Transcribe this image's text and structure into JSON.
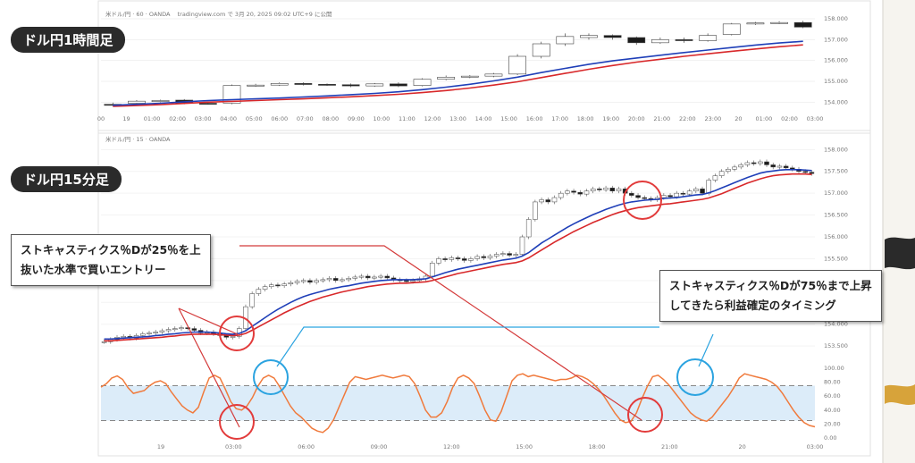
{
  "labels": {
    "hourly": "ドル円1時間足",
    "m15": "ドル円15分足",
    "callout_buy": [
      "ストキャスティクス％Dが25％を上",
      "抜いた水準で買いエントリー"
    ],
    "callout_sell": [
      "ストキャスティクス％Dが75％まで上昇",
      "してきたら利益確定のタイミング"
    ],
    "top_source": "米ドル/円 · 60 · OANDA",
    "top_meta": "tradingview.com で 3月 20, 2025 09:02 UTC+9 に公開",
    "m15_source": "米ドル/円 · 15 · OANDA"
  },
  "colors": {
    "ma_fast": "#1f3fb8",
    "ma_slow": "#d8282a",
    "stoch": "#f07a3c",
    "band_fill": "#dcecf9",
    "circle_red": "#e23b3b",
    "circle_blue": "#2ba3e0",
    "line_red": "#d43a3a",
    "line_blue": "#2ba3e0"
  },
  "chart_data": [
    {
      "type": "candlestick",
      "name": "hourly",
      "ylim": [
        153.5,
        158.3
      ],
      "y_ticks": [
        "158.000",
        "157.000",
        "156.000",
        "155.000",
        "154.000"
      ],
      "x_ticks": [
        "00",
        "19",
        "01:00",
        "02:00",
        "03:00",
        "04:00",
        "05:00",
        "06:00",
        "07:00",
        "08:00",
        "09:00",
        "10:00",
        "11:00",
        "12:00",
        "13:00",
        "14:00",
        "15:00",
        "16:00",
        "17:00",
        "18:00",
        "19:00",
        "20:00",
        "21:00",
        "22:00",
        "23:00",
        "20",
        "01:00",
        "02:00",
        "03:00"
      ],
      "candles": [
        {
          "o": 153.9,
          "c": 153.88,
          "h": 153.98,
          "l": 153.82
        },
        {
          "o": 153.95,
          "c": 154.05,
          "h": 154.1,
          "l": 153.92
        },
        {
          "o": 154.05,
          "c": 154.08,
          "h": 154.12,
          "l": 154.0
        },
        {
          "o": 154.1,
          "c": 153.95,
          "h": 154.15,
          "l": 153.9
        },
        {
          "o": 153.95,
          "c": 153.92,
          "h": 154.0,
          "l": 153.88
        },
        {
          "o": 153.95,
          "c": 154.8,
          "h": 154.85,
          "l": 153.9
        },
        {
          "o": 154.8,
          "c": 154.82,
          "h": 154.88,
          "l": 154.74
        },
        {
          "o": 154.82,
          "c": 154.9,
          "h": 154.95,
          "l": 154.78
        },
        {
          "o": 154.9,
          "c": 154.86,
          "h": 154.95,
          "l": 154.8
        },
        {
          "o": 154.86,
          "c": 154.84,
          "h": 154.9,
          "l": 154.78
        },
        {
          "o": 154.84,
          "c": 154.78,
          "h": 154.9,
          "l": 154.72
        },
        {
          "o": 154.78,
          "c": 154.88,
          "h": 154.92,
          "l": 154.74
        },
        {
          "o": 154.88,
          "c": 154.78,
          "h": 154.95,
          "l": 154.72
        },
        {
          "o": 154.8,
          "c": 155.1,
          "h": 155.15,
          "l": 154.76
        },
        {
          "o": 155.1,
          "c": 155.2,
          "h": 155.28,
          "l": 155.05
        },
        {
          "o": 155.2,
          "c": 155.25,
          "h": 155.3,
          "l": 155.15
        },
        {
          "o": 155.25,
          "c": 155.35,
          "h": 155.4,
          "l": 155.2
        },
        {
          "o": 155.35,
          "c": 156.2,
          "h": 156.3,
          "l": 155.3
        },
        {
          "o": 156.2,
          "c": 156.8,
          "h": 156.9,
          "l": 156.1
        },
        {
          "o": 156.8,
          "c": 157.15,
          "h": 157.3,
          "l": 156.7
        },
        {
          "o": 157.1,
          "c": 157.2,
          "h": 157.3,
          "l": 157.0
        },
        {
          "o": 157.2,
          "c": 157.1,
          "h": 157.25,
          "l": 157.0
        },
        {
          "o": 157.1,
          "c": 156.85,
          "h": 157.15,
          "l": 156.75
        },
        {
          "o": 156.85,
          "c": 157.0,
          "h": 157.1,
          "l": 156.8
        },
        {
          "o": 157.0,
          "c": 156.95,
          "h": 157.1,
          "l": 156.85
        },
        {
          "o": 156.95,
          "c": 157.2,
          "h": 157.3,
          "l": 156.9
        },
        {
          "o": 157.25,
          "c": 157.75,
          "h": 157.8,
          "l": 157.2
        },
        {
          "o": 157.75,
          "c": 157.8,
          "h": 157.85,
          "l": 157.7
        },
        {
          "o": 157.8,
          "c": 157.82,
          "h": 157.88,
          "l": 157.75
        },
        {
          "o": 157.82,
          "c": 157.6,
          "h": 157.9,
          "l": 157.55
        }
      ],
      "ma_fast": [
        153.85,
        153.9,
        153.95,
        154.02,
        154.08,
        154.12,
        154.16,
        154.2,
        154.25,
        154.3,
        154.36,
        154.42,
        154.5,
        154.6,
        154.72,
        154.86,
        155.02,
        155.2,
        155.42,
        155.62,
        155.82,
        155.98,
        156.12,
        156.25,
        156.38,
        156.5,
        156.62,
        156.74,
        156.84,
        156.92
      ],
      "ma_slow": [
        153.8,
        153.84,
        153.88,
        153.94,
        154.0,
        154.04,
        154.08,
        154.12,
        154.16,
        154.21,
        154.26,
        154.32,
        154.38,
        154.46,
        154.56,
        154.68,
        154.82,
        154.98,
        155.18,
        155.38,
        155.58,
        155.76,
        155.92,
        156.06,
        156.2,
        156.32,
        156.44,
        156.55,
        156.66,
        156.75
      ]
    },
    {
      "type": "candlestick",
      "name": "m15",
      "ylim": [
        153.4,
        158.15
      ],
      "y_ticks": [
        "158.000",
        "157.500",
        "157.000",
        "156.500",
        "156.000",
        "155.500",
        "155.000",
        "154.500",
        "154.000",
        "153.500"
      ],
      "x_ticks": [
        "19",
        "03:00",
        "06:00",
        "09:00",
        "12:00",
        "15:00",
        "18:00",
        "21:00",
        "20",
        "03:00"
      ],
      "closes": [
        153.6,
        153.65,
        153.7,
        153.72,
        153.68,
        153.74,
        153.78,
        153.8,
        153.82,
        153.85,
        153.88,
        153.9,
        153.92,
        153.9,
        153.86,
        153.8,
        153.82,
        153.78,
        153.74,
        153.7,
        153.72,
        153.9,
        154.4,
        154.7,
        154.8,
        154.86,
        154.9,
        154.88,
        154.92,
        154.95,
        154.98,
        155.0,
        154.96,
        155.0,
        155.02,
        155.05,
        155.0,
        155.02,
        155.05,
        155.08,
        155.1,
        155.06,
        155.08,
        155.1,
        155.06,
        155.02,
        155.0,
        154.98,
        155.0,
        155.04,
        155.1,
        155.4,
        155.5,
        155.48,
        155.52,
        155.5,
        155.46,
        155.5,
        155.55,
        155.52,
        155.56,
        155.6,
        155.62,
        155.58,
        155.6,
        156.0,
        156.4,
        156.8,
        156.85,
        156.8,
        156.9,
        157.0,
        157.05,
        157.02,
        156.98,
        157.05,
        157.1,
        157.08,
        157.12,
        157.05,
        157.1,
        157.0,
        156.95,
        156.9,
        156.88,
        156.85,
        156.9,
        156.95,
        156.92,
        157.0,
        156.98,
        157.05,
        157.1,
        157.0,
        157.3,
        157.4,
        157.5,
        157.55,
        157.6,
        157.65,
        157.7,
        157.68,
        157.72,
        157.65,
        157.6,
        157.62,
        157.58,
        157.55,
        157.5,
        157.48,
        157.45
      ],
      "ma_fast": [
        153.66,
        153.66,
        153.67,
        153.68,
        153.69,
        153.7,
        153.71,
        153.72,
        153.74,
        153.75,
        153.77,
        153.78,
        153.8,
        153.81,
        153.82,
        153.82,
        153.82,
        153.81,
        153.8,
        153.78,
        153.77,
        153.79,
        153.85,
        153.95,
        154.05,
        154.15,
        154.25,
        154.34,
        154.42,
        154.5,
        154.57,
        154.63,
        154.68,
        154.72,
        154.76,
        154.8,
        154.83,
        154.86,
        154.88,
        154.91,
        154.94,
        154.96,
        154.98,
        155.0,
        155.01,
        155.02,
        155.02,
        155.02,
        155.02,
        155.03,
        155.04,
        155.08,
        155.13,
        155.18,
        155.22,
        155.26,
        155.29,
        155.32,
        155.35,
        155.38,
        155.41,
        155.44,
        155.47,
        155.49,
        155.51,
        155.56,
        155.64,
        155.75,
        155.86,
        155.95,
        156.04,
        156.13,
        156.22,
        156.3,
        156.37,
        156.44,
        156.51,
        156.57,
        156.63,
        156.68,
        156.73,
        156.77,
        156.8,
        156.82,
        156.84,
        156.85,
        156.86,
        156.88,
        156.89,
        156.9,
        156.92,
        156.94,
        156.96,
        156.97,
        157.01,
        157.06,
        157.12,
        157.18,
        157.24,
        157.3,
        157.36,
        157.41,
        157.46,
        157.49,
        157.51,
        157.53,
        157.54,
        157.54,
        157.54,
        157.53,
        157.52
      ],
      "ma_slow": [
        153.62,
        153.62,
        153.63,
        153.64,
        153.65,
        153.66,
        153.67,
        153.68,
        153.69,
        153.7,
        153.72,
        153.73,
        153.75,
        153.76,
        153.77,
        153.77,
        153.77,
        153.77,
        153.76,
        153.75,
        153.74,
        153.75,
        153.79,
        153.86,
        153.94,
        154.02,
        154.1,
        154.18,
        154.26,
        154.33,
        154.4,
        154.46,
        154.52,
        154.57,
        154.62,
        154.66,
        154.7,
        154.74,
        154.77,
        154.8,
        154.83,
        154.86,
        154.88,
        154.9,
        154.92,
        154.93,
        154.94,
        154.94,
        154.95,
        154.96,
        154.97,
        155.0,
        155.04,
        155.08,
        155.12,
        155.16,
        155.19,
        155.22,
        155.25,
        155.28,
        155.31,
        155.34,
        155.37,
        155.39,
        155.41,
        155.45,
        155.52,
        155.61,
        155.7,
        155.79,
        155.88,
        155.96,
        156.04,
        156.12,
        156.19,
        156.26,
        156.33,
        156.39,
        156.45,
        156.51,
        156.56,
        156.6,
        156.64,
        156.67,
        156.69,
        156.71,
        156.73,
        156.75,
        156.76,
        156.78,
        156.8,
        156.82,
        156.84,
        156.86,
        156.89,
        156.94,
        156.99,
        157.05,
        157.11,
        157.17,
        157.23,
        157.28,
        157.33,
        157.37,
        157.4,
        157.42,
        157.43,
        157.44,
        157.44,
        157.44,
        157.43
      ]
    },
    {
      "type": "line",
      "name": "stochastic_percent_d",
      "ylim": [
        0,
        100
      ],
      "y_ticks": [
        "100.00",
        "80.00",
        "60.00",
        "40.00",
        "20.00",
        "0.00"
      ],
      "band": [
        25,
        75
      ],
      "values": [
        73,
        78,
        86,
        89,
        84,
        72,
        64,
        66,
        68,
        75,
        80,
        82,
        78,
        66,
        56,
        46,
        40,
        36,
        44,
        66,
        86,
        90,
        86,
        70,
        52,
        42,
        40,
        46,
        58,
        74,
        86,
        90,
        86,
        74,
        60,
        46,
        36,
        30,
        22,
        14,
        10,
        8,
        14,
        26,
        44,
        62,
        80,
        88,
        86,
        84,
        86,
        88,
        90,
        88,
        86,
        88,
        90,
        88,
        78,
        60,
        40,
        30,
        30,
        36,
        52,
        72,
        86,
        90,
        86,
        78,
        60,
        40,
        26,
        24,
        38,
        60,
        82,
        90,
        92,
        88,
        90,
        88,
        86,
        84,
        82,
        84,
        84,
        86,
        90,
        88,
        84,
        78,
        70,
        60,
        48,
        36,
        26,
        22,
        24,
        36,
        56,
        74,
        88,
        90,
        84,
        76,
        66,
        56,
        46,
        36,
        30,
        26,
        24,
        30,
        40,
        50,
        60,
        72,
        86,
        92,
        90,
        88,
        86,
        84,
        80,
        74,
        64,
        52,
        40,
        30,
        22,
        18,
        16
      ]
    }
  ]
}
